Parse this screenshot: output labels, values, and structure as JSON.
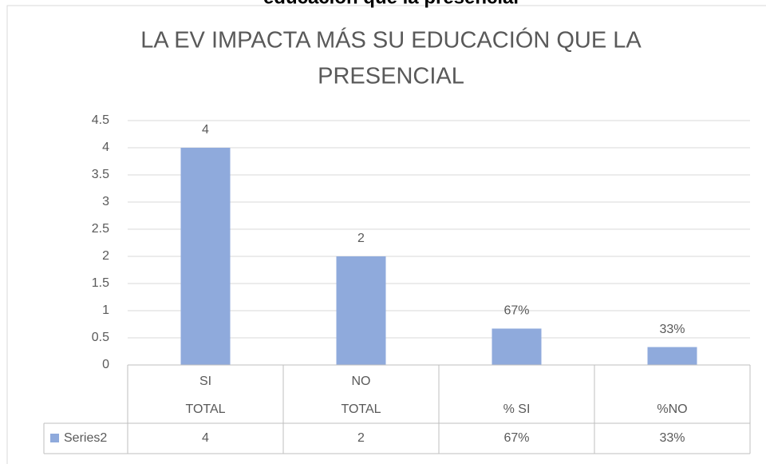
{
  "header": "educación que la presencial",
  "chart_data": {
    "type": "bar",
    "title": [
      "LA  EV IMPACTA MÁS SU EDUCACIÓN QUE LA",
      "PRESENCIAL"
    ],
    "categories": [
      "SI",
      "NO",
      null,
      null
    ],
    "category_groups": [
      "TOTAL",
      "TOTAL",
      "% SI",
      "%NO"
    ],
    "series": [
      {
        "name": "Series2",
        "color": "#8faadc",
        "values": [
          4,
          2,
          0.67,
          0.33
        ],
        "value_labels": [
          "4",
          "2",
          "67%",
          "33%"
        ]
      }
    ],
    "ylim": [
      0,
      4.5
    ],
    "yticks": [
      0,
      0.5,
      1,
      1.5,
      2,
      2.5,
      3,
      3.5,
      4,
      4.5
    ],
    "grid": true,
    "data_table": true
  }
}
